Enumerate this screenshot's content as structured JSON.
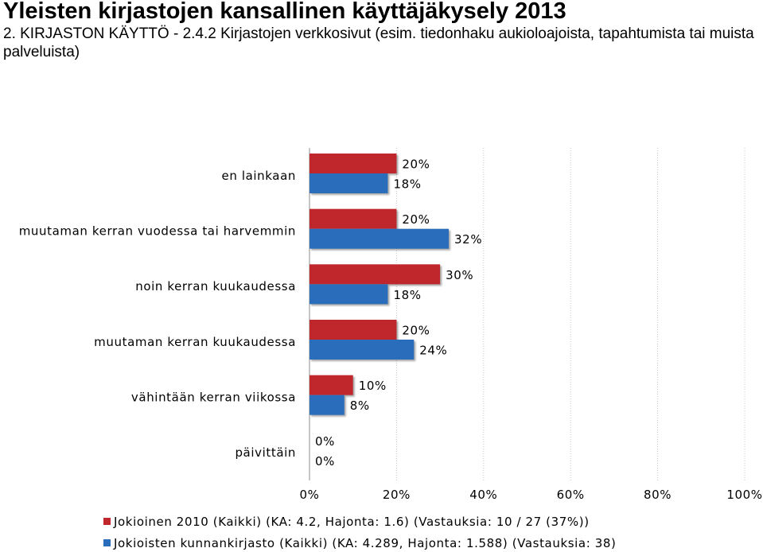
{
  "title": "Yleisten kirjastojen kansallinen käyttäjäkysely 2013",
  "subtitle": "2. KIRJASTON KÄYTTÖ - 2.4.2 Kirjastojen verkkosivut (esim. tiedonhaku aukioloajoista, tapahtumista tai muista palveluista)",
  "chart_data": {
    "type": "bar",
    "orientation": "horizontal",
    "categories": [
      "en lainkaan",
      "muutaman kerran vuodessa tai harvemmin",
      "noin kerran kuukaudessa",
      "muutaman kerran kuukaudessa",
      "vähintään kerran viikossa",
      "päivittäin"
    ],
    "series": [
      {
        "name": "Jokioinen 2010 (Kaikki) (KA: 4.2, Hajonta: 1.6) (Vastauksia: 10 / 27 (37%))",
        "values": [
          20,
          20,
          30,
          20,
          10,
          0
        ],
        "color": "#c0272d"
      },
      {
        "name": "Jokioisten kunnankirjasto (Kaikki) (KA: 4.289, Hajonta: 1.588) (Vastauksia: 38)",
        "values": [
          18,
          32,
          18,
          24,
          8,
          0
        ],
        "color": "#2a6ebb"
      }
    ],
    "value_labels": [
      [
        "20%",
        "20%",
        "30%",
        "20%",
        "10%",
        "0%"
      ],
      [
        "18%",
        "32%",
        "18%",
        "24%",
        "8%",
        "0%"
      ]
    ],
    "xlim": [
      0,
      100
    ],
    "xticks": [
      "0%",
      "20%",
      "40%",
      "60%",
      "80%",
      "100%"
    ],
    "grid": true,
    "legend_position": "bottom"
  }
}
